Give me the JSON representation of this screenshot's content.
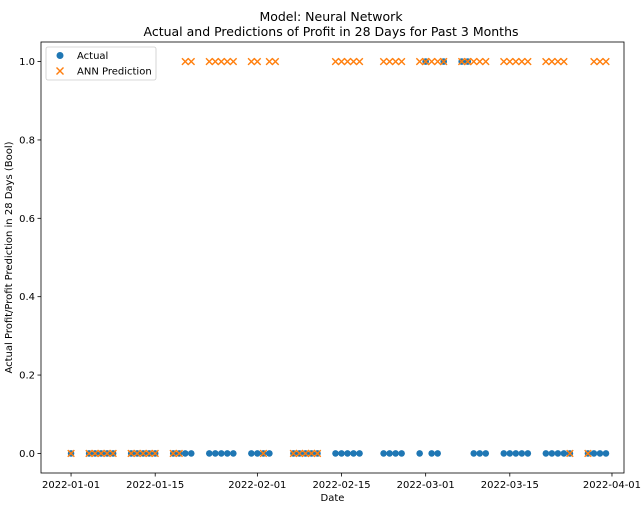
{
  "chart_data": {
    "type": "scatter",
    "title": "Model: Neural Network",
    "subtitle": "Actual and Predictions of Profit in 28 Days for Past 3 Months",
    "xlabel": "Date",
    "ylabel": "Actual Profit/Profit Prediction in 28 Days (Bool)",
    "x_range": [
      "2021-12-27",
      "2022-04-03"
    ],
    "ylim": [
      -0.05,
      1.05
    ],
    "x_ticks": [
      "2022-01-01",
      "2022-01-15",
      "2022-02-01",
      "2022-02-15",
      "2022-03-01",
      "2022-03-15",
      "2022-04-01"
    ],
    "y_ticks": [
      0.0,
      0.2,
      0.4,
      0.6,
      0.8,
      1.0
    ],
    "y_tick_labels": [
      "0.0",
      "0.2",
      "0.4",
      "0.6",
      "0.8",
      "1.0"
    ],
    "legend": "upper-left",
    "grid": false,
    "series": [
      {
        "name": "Actual",
        "marker": "circle",
        "color": "#1f77b4",
        "points": [
          [
            "2022-01-01",
            0
          ],
          [
            "2022-01-04",
            0
          ],
          [
            "2022-01-05",
            0
          ],
          [
            "2022-01-06",
            0
          ],
          [
            "2022-01-07",
            0
          ],
          [
            "2022-01-08",
            0
          ],
          [
            "2022-01-11",
            0
          ],
          [
            "2022-01-12",
            0
          ],
          [
            "2022-01-13",
            0
          ],
          [
            "2022-01-14",
            0
          ],
          [
            "2022-01-15",
            0
          ],
          [
            "2022-01-18",
            0
          ],
          [
            "2022-01-19",
            0
          ],
          [
            "2022-01-20",
            0
          ],
          [
            "2022-01-21",
            0
          ],
          [
            "2022-01-24",
            0
          ],
          [
            "2022-01-25",
            0
          ],
          [
            "2022-01-26",
            0
          ],
          [
            "2022-01-27",
            0
          ],
          [
            "2022-01-28",
            0
          ],
          [
            "2022-01-31",
            0
          ],
          [
            "2022-02-01",
            0
          ],
          [
            "2022-02-02",
            0
          ],
          [
            "2022-02-03",
            0
          ],
          [
            "2022-02-07",
            0
          ],
          [
            "2022-02-08",
            0
          ],
          [
            "2022-02-09",
            0
          ],
          [
            "2022-02-10",
            0
          ],
          [
            "2022-02-11",
            0
          ],
          [
            "2022-02-14",
            0
          ],
          [
            "2022-02-15",
            0
          ],
          [
            "2022-02-16",
            0
          ],
          [
            "2022-02-17",
            0
          ],
          [
            "2022-02-18",
            0
          ],
          [
            "2022-02-22",
            0
          ],
          [
            "2022-02-23",
            0
          ],
          [
            "2022-02-24",
            0
          ],
          [
            "2022-02-25",
            0
          ],
          [
            "2022-02-28",
            0
          ],
          [
            "2022-03-01",
            1
          ],
          [
            "2022-03-02",
            0
          ],
          [
            "2022-03-03",
            0
          ],
          [
            "2022-03-04",
            1
          ],
          [
            "2022-03-07",
            1
          ],
          [
            "2022-03-08",
            1
          ],
          [
            "2022-03-09",
            0
          ],
          [
            "2022-03-10",
            0
          ],
          [
            "2022-03-11",
            0
          ],
          [
            "2022-03-14",
            0
          ],
          [
            "2022-03-15",
            0
          ],
          [
            "2022-03-16",
            0
          ],
          [
            "2022-03-17",
            0
          ],
          [
            "2022-03-18",
            0
          ],
          [
            "2022-03-21",
            0
          ],
          [
            "2022-03-22",
            0
          ],
          [
            "2022-03-23",
            0
          ],
          [
            "2022-03-24",
            0
          ],
          [
            "2022-03-25",
            0
          ],
          [
            "2022-03-28",
            0
          ],
          [
            "2022-03-29",
            0
          ],
          [
            "2022-03-30",
            0
          ],
          [
            "2022-03-31",
            0
          ]
        ]
      },
      {
        "name": "ANN Prediction",
        "marker": "x",
        "color": "#ff7f0e",
        "points": [
          [
            "2022-01-01",
            0
          ],
          [
            "2022-01-04",
            0
          ],
          [
            "2022-01-05",
            0
          ],
          [
            "2022-01-06",
            0
          ],
          [
            "2022-01-07",
            0
          ],
          [
            "2022-01-08",
            0
          ],
          [
            "2022-01-11",
            0
          ],
          [
            "2022-01-12",
            0
          ],
          [
            "2022-01-13",
            0
          ],
          [
            "2022-01-14",
            0
          ],
          [
            "2022-01-15",
            0
          ],
          [
            "2022-01-18",
            0
          ],
          [
            "2022-01-19",
            0
          ],
          [
            "2022-01-20",
            1
          ],
          [
            "2022-01-21",
            1
          ],
          [
            "2022-01-24",
            1
          ],
          [
            "2022-01-25",
            1
          ],
          [
            "2022-01-26",
            1
          ],
          [
            "2022-01-27",
            1
          ],
          [
            "2022-01-28",
            1
          ],
          [
            "2022-01-31",
            1
          ],
          [
            "2022-02-01",
            1
          ],
          [
            "2022-02-02",
            0
          ],
          [
            "2022-02-03",
            1
          ],
          [
            "2022-02-04",
            1
          ],
          [
            "2022-02-07",
            0
          ],
          [
            "2022-02-08",
            0
          ],
          [
            "2022-02-09",
            0
          ],
          [
            "2022-02-10",
            0
          ],
          [
            "2022-02-11",
            0
          ],
          [
            "2022-02-14",
            1
          ],
          [
            "2022-02-15",
            1
          ],
          [
            "2022-02-16",
            1
          ],
          [
            "2022-02-17",
            1
          ],
          [
            "2022-02-18",
            1
          ],
          [
            "2022-02-22",
            1
          ],
          [
            "2022-02-23",
            1
          ],
          [
            "2022-02-24",
            1
          ],
          [
            "2022-02-25",
            1
          ],
          [
            "2022-02-28",
            1
          ],
          [
            "2022-03-01",
            1
          ],
          [
            "2022-03-02",
            1
          ],
          [
            "2022-03-03",
            1
          ],
          [
            "2022-03-04",
            1
          ],
          [
            "2022-03-07",
            1
          ],
          [
            "2022-03-08",
            1
          ],
          [
            "2022-03-09",
            1
          ],
          [
            "2022-03-10",
            1
          ],
          [
            "2022-03-11",
            1
          ],
          [
            "2022-03-14",
            1
          ],
          [
            "2022-03-15",
            1
          ],
          [
            "2022-03-16",
            1
          ],
          [
            "2022-03-17",
            1
          ],
          [
            "2022-03-18",
            1
          ],
          [
            "2022-03-21",
            1
          ],
          [
            "2022-03-22",
            1
          ],
          [
            "2022-03-23",
            1
          ],
          [
            "2022-03-24",
            1
          ],
          [
            "2022-03-25",
            0
          ],
          [
            "2022-03-28",
            0
          ],
          [
            "2022-03-29",
            1
          ],
          [
            "2022-03-30",
            1
          ],
          [
            "2022-03-31",
            1
          ]
        ]
      }
    ]
  }
}
